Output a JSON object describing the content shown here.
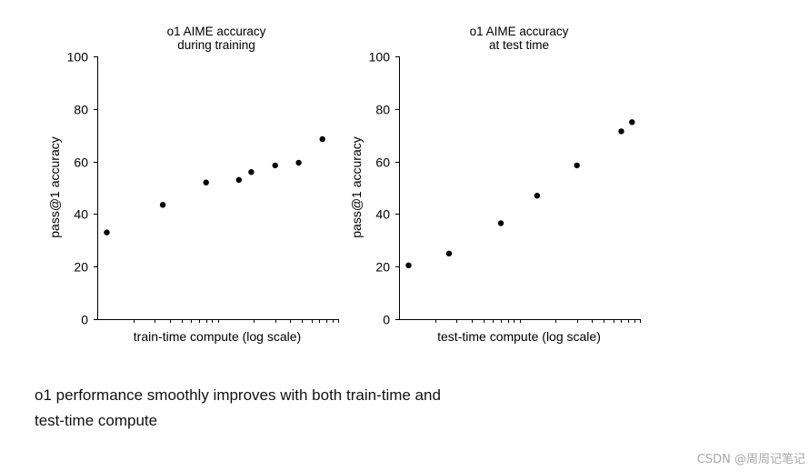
{
  "chart_data": [
    {
      "type": "scatter",
      "title_lines": [
        "o1 AIME accuracy",
        "during training"
      ],
      "xlabel": "train-time compute (log scale)",
      "ylabel": "pass@1 accuracy",
      "xscale": "log",
      "x_ticks_labeled": false,
      "yticks": [
        "0",
        "20",
        "40",
        "60",
        "80",
        "100"
      ],
      "ylim": [
        0,
        100
      ],
      "grid": false,
      "x": [
        1.2,
        3.5,
        8.0,
        15.0,
        19.0,
        30.0,
        47.0,
        74.0
      ],
      "y": [
        33,
        43.5,
        52,
        53,
        56,
        58.5,
        59.5,
        68.5
      ]
    },
    {
      "type": "scatter",
      "title_lines": [
        "o1 AIME accuracy",
        "at test time"
      ],
      "xlabel": "test-time compute (log scale)",
      "ylabel": "pass@1 accuracy",
      "xscale": "log",
      "x_ticks_labeled": false,
      "yticks": [
        "0",
        "20",
        "40",
        "60",
        "80",
        "100"
      ],
      "ylim": [
        0,
        100
      ],
      "grid": false,
      "x": [
        1.2,
        2.6,
        7.0,
        14.0,
        30.0,
        70.0,
        86.0
      ],
      "y": [
        20.5,
        25,
        36.5,
        47,
        58.5,
        71.5,
        75
      ]
    }
  ],
  "caption": {
    "line1": "o1 performance smoothly improves with both train-time and",
    "line2": "test-time compute"
  },
  "watermark": "CSDN @周周记笔记"
}
